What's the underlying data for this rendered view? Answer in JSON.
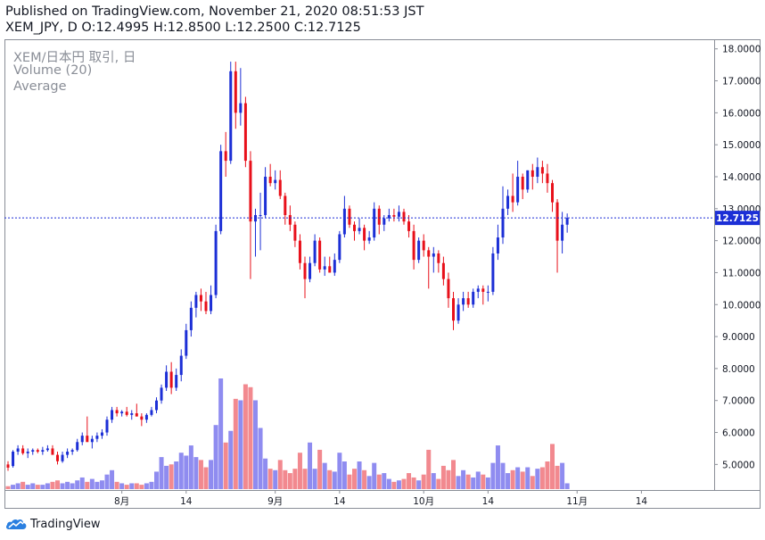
{
  "header": {
    "published": "Published on TradingView.com, November 21, 2020 08:51:53 JST",
    "ohlc": "XEM_JPY, D O:12.4995 H:12.8500 L:12.2500 C:12.7125"
  },
  "legend": {
    "symbol": "XEM/日本円 取引, 日",
    "volume": "Volume (20)",
    "average": "Average"
  },
  "footer": {
    "brand": "TradingView"
  },
  "colors": {
    "up": "#1c2fd6",
    "down": "#e8101a",
    "vol_up": "#8f8cf0",
    "vol_down": "#f2898f",
    "price_line": "#1c2fd6",
    "price_label_bg": "#1c2fd6",
    "frame": "#8a8e97",
    "text": "#131722"
  },
  "chart_data": {
    "type": "candlestick",
    "symbol": "XEM_JPY",
    "interval": "D",
    "ylim": [
      4.2,
      18.3
    ],
    "y_ticks": [
      "18.0000",
      "17.0000",
      "16.0000",
      "15.0000",
      "14.0000",
      "13.0000",
      "12.0000",
      "11.0000",
      "10.0000",
      "9.0000",
      "8.0000",
      "7.0000",
      "6.0000",
      "5.0000"
    ],
    "x_ticks": [
      {
        "label": "8月",
        "index": 23
      },
      {
        "label": "14",
        "index": 36
      },
      {
        "label": "9月",
        "index": 54
      },
      {
        "label": "14",
        "index": 67
      },
      {
        "label": "10月",
        "index": 84
      },
      {
        "label": "14",
        "index": 97
      },
      {
        "label": "11月",
        "index": 115
      },
      {
        "label": "14",
        "index": 128
      }
    ],
    "last_price": {
      "value": 12.7125,
      "label": "12.7125"
    },
    "volume_max": 7.6,
    "candles": [
      [
        5.0,
        5.1,
        4.8,
        4.9,
        0.2
      ],
      [
        4.95,
        5.45,
        4.9,
        5.4,
        0.3
      ],
      [
        5.4,
        5.6,
        5.3,
        5.5,
        0.4
      ],
      [
        5.5,
        5.6,
        5.3,
        5.35,
        0.5
      ],
      [
        5.35,
        5.5,
        5.2,
        5.4,
        0.3
      ],
      [
        5.4,
        5.5,
        5.3,
        5.45,
        0.4
      ],
      [
        5.45,
        5.5,
        5.35,
        5.4,
        0.3
      ],
      [
        5.4,
        5.55,
        5.3,
        5.45,
        0.3
      ],
      [
        5.45,
        5.6,
        5.4,
        5.5,
        0.4
      ],
      [
        5.5,
        5.6,
        5.35,
        5.3,
        0.5
      ],
      [
        5.3,
        5.4,
        5.0,
        5.1,
        0.6
      ],
      [
        5.1,
        5.4,
        5.05,
        5.3,
        0.4
      ],
      [
        5.3,
        5.5,
        5.2,
        5.4,
        0.5
      ],
      [
        5.4,
        5.5,
        5.3,
        5.45,
        0.4
      ],
      [
        5.45,
        5.8,
        5.4,
        5.7,
        0.6
      ],
      [
        5.7,
        6.0,
        5.6,
        5.9,
        0.8
      ],
      [
        5.9,
        6.5,
        5.8,
        5.7,
        0.5
      ],
      [
        5.7,
        5.9,
        5.5,
        5.8,
        0.7
      ],
      [
        5.8,
        6.0,
        5.7,
        5.9,
        0.5
      ],
      [
        5.9,
        6.1,
        5.8,
        6.0,
        0.6
      ],
      [
        6.0,
        6.5,
        5.9,
        6.4,
        1.0
      ],
      [
        6.4,
        6.8,
        6.3,
        6.7,
        1.3
      ],
      [
        6.7,
        6.8,
        6.5,
        6.6,
        0.5
      ],
      [
        6.6,
        6.7,
        6.5,
        6.65,
        0.4
      ],
      [
        6.65,
        6.8,
        6.5,
        6.55,
        0.3
      ],
      [
        6.55,
        6.7,
        6.4,
        6.6,
        0.4
      ],
      [
        6.6,
        6.9,
        6.5,
        6.5,
        0.4
      ],
      [
        6.5,
        6.6,
        6.2,
        6.4,
        0.3
      ],
      [
        6.4,
        6.6,
        6.3,
        6.55,
        0.4
      ],
      [
        6.55,
        6.8,
        6.5,
        6.7,
        0.5
      ],
      [
        6.7,
        7.1,
        6.6,
        7.0,
        1.2
      ],
      [
        7.0,
        7.5,
        6.9,
        7.4,
        2.2
      ],
      [
        7.4,
        8.1,
        7.3,
        7.9,
        1.6
      ],
      [
        7.9,
        8.2,
        7.2,
        7.4,
        1.7
      ],
      [
        7.4,
        8.0,
        7.3,
        7.8,
        1.9
      ],
      [
        7.8,
        8.6,
        7.6,
        8.4,
        2.5
      ],
      [
        8.4,
        9.4,
        8.3,
        9.2,
        2.3
      ],
      [
        9.2,
        10.1,
        9.0,
        9.9,
        3.0
      ],
      [
        9.9,
        10.4,
        9.6,
        10.3,
        2.2
      ],
      [
        10.3,
        10.5,
        9.8,
        10.1,
        2.0
      ],
      [
        10.1,
        10.4,
        9.7,
        9.8,
        1.5
      ],
      [
        9.8,
        10.6,
        9.7,
        10.3,
        2.0
      ],
      [
        10.3,
        12.5,
        10.2,
        12.3,
        4.4
      ],
      [
        12.3,
        15.0,
        12.2,
        14.8,
        7.6
      ],
      [
        14.8,
        15.4,
        14.0,
        14.5,
        3.2
      ],
      [
        14.5,
        17.6,
        14.4,
        17.3,
        4.0
      ],
      [
        17.3,
        17.6,
        15.5,
        16.0,
        6.2
      ],
      [
        16.0,
        17.4,
        15.6,
        16.3,
        6.1
      ],
      [
        16.3,
        16.5,
        14.3,
        14.5,
        7.2
      ],
      [
        14.5,
        14.8,
        10.8,
        12.6,
        7.0
      ],
      [
        12.6,
        13.0,
        11.5,
        12.8,
        6.1
      ],
      [
        12.8,
        13.5,
        11.7,
        12.8,
        4.2
      ],
      [
        12.8,
        14.3,
        12.7,
        14.0,
        2.1
      ],
      [
        14.0,
        14.4,
        13.7,
        13.8,
        1.4
      ],
      [
        13.8,
        14.2,
        13.6,
        13.9,
        1.3
      ],
      [
        13.9,
        14.2,
        13.3,
        13.4,
        2.0
      ],
      [
        13.4,
        13.5,
        12.5,
        12.8,
        1.3
      ],
      [
        12.8,
        13.1,
        12.3,
        12.5,
        1.1
      ],
      [
        12.5,
        12.6,
        11.8,
        12.0,
        1.4
      ],
      [
        12.0,
        12.2,
        11.1,
        11.3,
        2.5
      ],
      [
        11.3,
        11.5,
        10.2,
        10.8,
        1.4
      ],
      [
        10.8,
        11.5,
        10.7,
        11.3,
        3.2
      ],
      [
        11.3,
        12.2,
        11.2,
        12.0,
        1.4
      ],
      [
        12.0,
        12.1,
        11.0,
        11.1,
        2.7
      ],
      [
        11.1,
        11.5,
        10.9,
        11.2,
        1.8
      ],
      [
        11.2,
        11.5,
        11.0,
        11.0,
        1.3
      ],
      [
        11.0,
        11.6,
        10.9,
        11.4,
        1.2
      ],
      [
        11.4,
        12.3,
        11.3,
        12.2,
        2.5
      ],
      [
        12.2,
        13.4,
        12.1,
        13.0,
        1.9
      ],
      [
        13.0,
        13.1,
        12.4,
        12.5,
        1.0
      ],
      [
        12.5,
        12.6,
        12.0,
        12.3,
        1.4
      ],
      [
        12.3,
        12.7,
        12.2,
        12.4,
        1.9
      ],
      [
        12.4,
        12.5,
        11.7,
        12.0,
        1.3
      ],
      [
        12.0,
        12.3,
        11.9,
        12.1,
        0.9
      ],
      [
        12.1,
        13.2,
        12.0,
        13.0,
        1.8
      ],
      [
        13.0,
        13.1,
        12.2,
        12.5,
        1.0
      ],
      [
        12.5,
        12.8,
        12.3,
        12.7,
        1.1
      ],
      [
        12.7,
        13.0,
        12.6,
        12.8,
        0.7
      ],
      [
        12.8,
        13.0,
        12.6,
        12.75,
        0.5
      ],
      [
        12.75,
        13.1,
        12.6,
        12.9,
        0.6
      ],
      [
        12.9,
        13.0,
        12.5,
        12.6,
        0.7
      ],
      [
        12.6,
        12.8,
        12.1,
        12.3,
        1.1
      ],
      [
        12.3,
        12.5,
        11.1,
        11.4,
        0.8
      ],
      [
        11.4,
        12.1,
        11.3,
        12.0,
        0.6
      ],
      [
        12.0,
        12.2,
        11.5,
        11.7,
        1.0
      ],
      [
        11.7,
        11.8,
        10.5,
        11.5,
        2.7
      ],
      [
        11.5,
        11.8,
        11.0,
        11.6,
        1.1
      ],
      [
        11.6,
        11.7,
        11.0,
        11.3,
        0.7
      ],
      [
        11.3,
        11.5,
        10.6,
        10.8,
        1.6
      ],
      [
        10.8,
        11.0,
        9.9,
        10.2,
        1.3
      ],
      [
        10.2,
        10.4,
        9.2,
        9.5,
        2.0
      ],
      [
        9.5,
        10.2,
        9.4,
        10.0,
        0.9
      ],
      [
        10.0,
        10.4,
        9.8,
        10.2,
        1.3
      ],
      [
        10.2,
        10.4,
        9.9,
        10.0,
        1.0
      ],
      [
        10.0,
        10.5,
        9.9,
        10.4,
        0.8
      ],
      [
        10.4,
        10.6,
        10.2,
        10.5,
        1.2
      ],
      [
        10.5,
        10.6,
        10.0,
        10.4,
        1.0
      ],
      [
        10.4,
        10.6,
        10.1,
        10.4,
        0.8
      ],
      [
        10.4,
        11.8,
        10.3,
        11.6,
        1.8
      ],
      [
        11.6,
        12.5,
        11.4,
        12.1,
        3.0
      ],
      [
        12.1,
        13.7,
        11.9,
        13.0,
        1.8
      ],
      [
        13.0,
        13.6,
        12.8,
        13.4,
        1.1
      ],
      [
        13.4,
        14.1,
        12.9,
        13.2,
        1.3
      ],
      [
        13.2,
        14.5,
        13.1,
        14.0,
        1.5
      ],
      [
        14.0,
        14.1,
        13.3,
        13.6,
        1.2
      ],
      [
        13.6,
        14.2,
        13.5,
        14.2,
        1.5
      ],
      [
        14.2,
        14.4,
        13.6,
        14.0,
        0.9
      ],
      [
        14.0,
        14.6,
        13.8,
        14.3,
        1.4
      ],
      [
        14.3,
        14.5,
        13.8,
        14.1,
        1.5
      ],
      [
        14.1,
        14.4,
        13.5,
        13.8,
        1.9
      ],
      [
        13.8,
        13.9,
        12.9,
        13.2,
        3.1
      ],
      [
        13.2,
        13.3,
        11.0,
        12.0,
        1.6
      ],
      [
        12.0,
        12.9,
        11.6,
        12.5,
        1.8
      ],
      [
        12.4995,
        12.85,
        12.25,
        12.7125,
        0.4
      ]
    ]
  }
}
